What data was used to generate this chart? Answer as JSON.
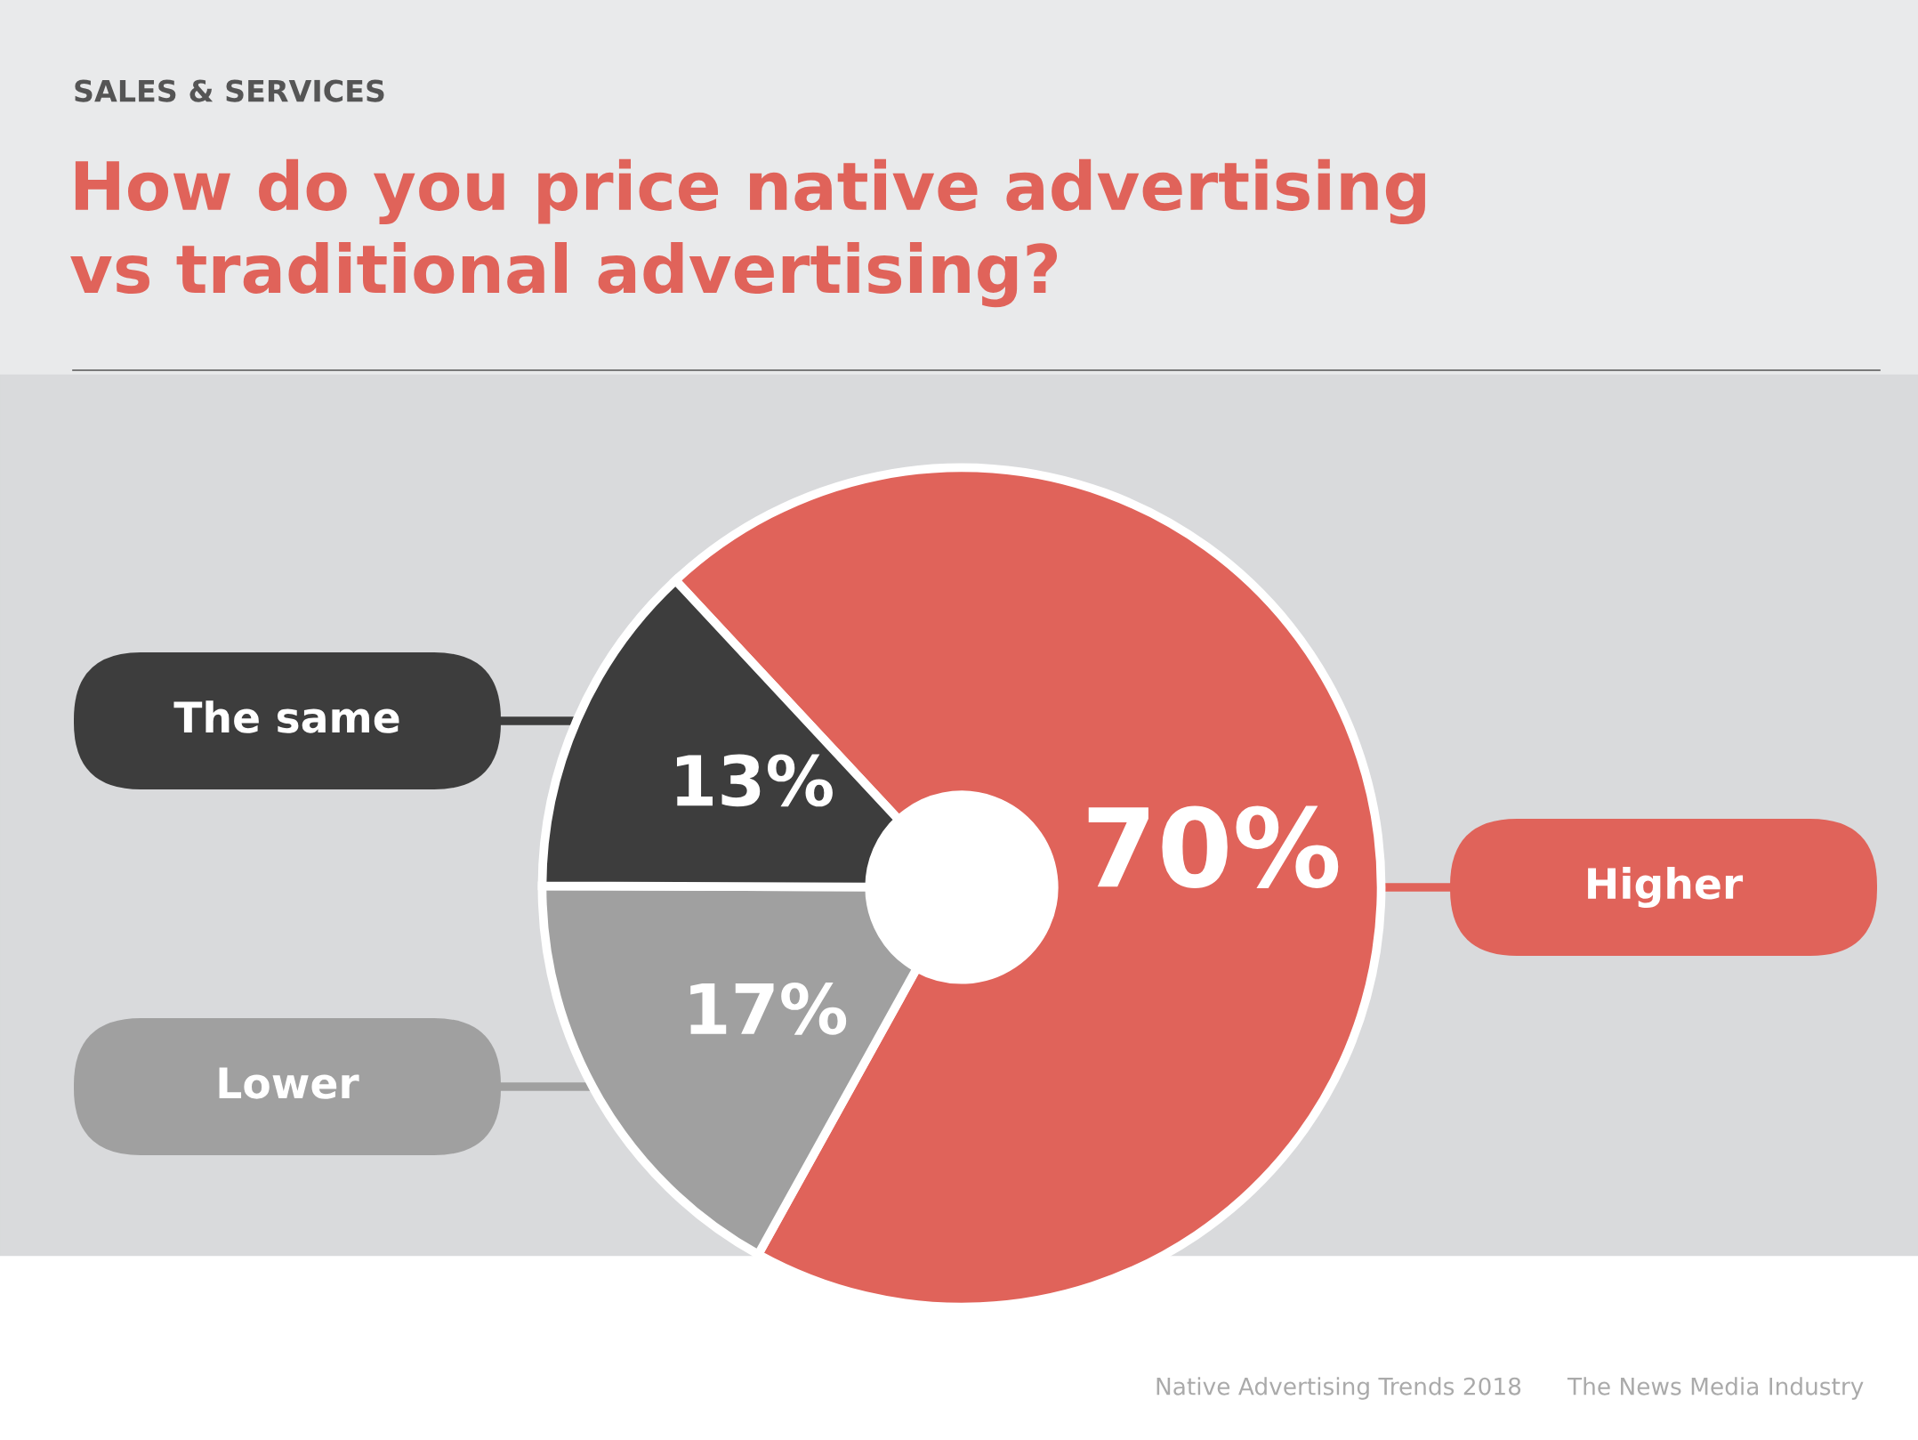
{
  "chart_data": {
    "type": "donut",
    "subtitle": "SALES & SERVICES",
    "title": "How do you price native advertising\nvs traditional advertising?",
    "categories": [
      "Higher",
      "Lower",
      "The same"
    ],
    "values": [
      70,
      17,
      13
    ],
    "colors": [
      "#e0635a",
      "#a0a0a0",
      "#3d3d3d"
    ],
    "value_labels": [
      "70%",
      "17%",
      "13%"
    ],
    "annotations": [
      "Native Advertising Trends 2018",
      "The News Media Industry"
    ]
  }
}
